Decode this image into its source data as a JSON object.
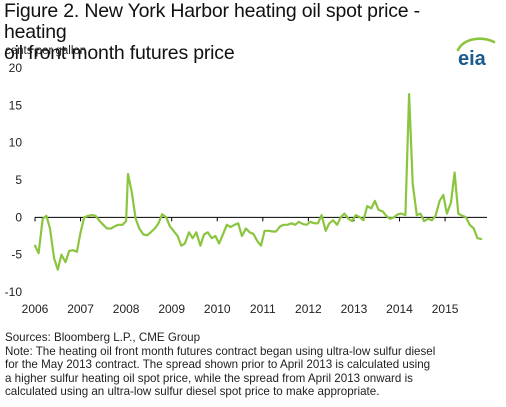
{
  "title_line1": "Figure 2. New York Harbor heating oil spot price - heating",
  "title_line2": "oil front month futures price",
  "units_label": "cents per gallon",
  "logo_text": "eia",
  "colors": {
    "line": "#8BC53F",
    "zero_line": "#000000",
    "text": "#222222",
    "logo": "#1a5a8c"
  },
  "chart_data": {
    "type": "line",
    "title": "Figure 2. New York Harbor heating oil spot price - heating oil front month futures price",
    "ylabel": "cents per gallon",
    "xlabel": "",
    "ylim": [
      -10,
      20
    ],
    "yticks": [
      -10,
      -5,
      0,
      5,
      10,
      15,
      20
    ],
    "xlim": [
      2006,
      2015.92
    ],
    "xticks": [
      2006,
      2007,
      2008,
      2009,
      2010,
      2011,
      2012,
      2013,
      2014,
      2015
    ],
    "xticklabels": [
      "2006",
      "2007",
      "2008",
      "2009",
      "2010",
      "2011",
      "2012",
      "2013",
      "2014",
      "2015"
    ],
    "grid": false,
    "series": [
      {
        "values": [
          [
            2006.0,
            -3.8
          ],
          [
            2006.08,
            -4.8
          ],
          [
            2006.17,
            -0.2
          ],
          [
            2006.25,
            0.2
          ],
          [
            2006.33,
            -1.5
          ],
          [
            2006.42,
            -5.5
          ],
          [
            2006.5,
            -7.0
          ],
          [
            2006.58,
            -5.0
          ],
          [
            2006.67,
            -6.0
          ],
          [
            2006.75,
            -4.5
          ],
          [
            2006.83,
            -4.4
          ],
          [
            2006.92,
            -4.6
          ],
          [
            2007.0,
            -2.0
          ],
          [
            2007.08,
            0.0
          ],
          [
            2007.17,
            0.2
          ],
          [
            2007.25,
            0.3
          ],
          [
            2007.33,
            0.2
          ],
          [
            2007.42,
            -0.5
          ],
          [
            2007.5,
            -1.0
          ],
          [
            2007.58,
            -1.5
          ],
          [
            2007.67,
            -1.5
          ],
          [
            2007.75,
            -1.2
          ],
          [
            2007.83,
            -1.0
          ],
          [
            2007.92,
            -1.0
          ],
          [
            2008.0,
            -0.5
          ],
          [
            2008.04,
            5.8
          ],
          [
            2008.12,
            3.5
          ],
          [
            2008.21,
            -0.2
          ],
          [
            2008.29,
            -1.5
          ],
          [
            2008.38,
            -2.3
          ],
          [
            2008.46,
            -2.4
          ],
          [
            2008.54,
            -2.0
          ],
          [
            2008.63,
            -1.5
          ],
          [
            2008.71,
            -0.8
          ],
          [
            2008.79,
            0.4
          ],
          [
            2008.88,
            0.0
          ],
          [
            2008.96,
            -1.2
          ],
          [
            2009.04,
            -1.8
          ],
          [
            2009.13,
            -2.5
          ],
          [
            2009.21,
            -3.8
          ],
          [
            2009.29,
            -3.5
          ],
          [
            2009.38,
            -2.0
          ],
          [
            2009.46,
            -2.8
          ],
          [
            2009.54,
            -2.0
          ],
          [
            2009.63,
            -3.8
          ],
          [
            2009.71,
            -2.3
          ],
          [
            2009.79,
            -2.0
          ],
          [
            2009.88,
            -2.8
          ],
          [
            2009.96,
            -2.5
          ],
          [
            2010.04,
            -3.5
          ],
          [
            2010.13,
            -2.2
          ],
          [
            2010.21,
            -1.0
          ],
          [
            2010.29,
            -1.3
          ],
          [
            2010.38,
            -1.0
          ],
          [
            2010.46,
            -0.8
          ],
          [
            2010.54,
            -2.5
          ],
          [
            2010.63,
            -1.5
          ],
          [
            2010.71,
            -2.0
          ],
          [
            2010.79,
            -2.2
          ],
          [
            2010.88,
            -3.2
          ],
          [
            2010.96,
            -3.8
          ],
          [
            2011.04,
            -1.8
          ],
          [
            2011.13,
            -1.8
          ],
          [
            2011.21,
            -1.9
          ],
          [
            2011.29,
            -1.9
          ],
          [
            2011.38,
            -1.2
          ],
          [
            2011.46,
            -1.0
          ],
          [
            2011.54,
            -1.0
          ],
          [
            2011.63,
            -0.8
          ],
          [
            2011.71,
            -1.0
          ],
          [
            2011.79,
            -0.6
          ],
          [
            2011.88,
            -0.9
          ],
          [
            2011.96,
            -1.0
          ],
          [
            2012.04,
            -0.6
          ],
          [
            2012.13,
            -0.8
          ],
          [
            2012.21,
            -0.8
          ],
          [
            2012.29,
            0.3
          ],
          [
            2012.38,
            -1.8
          ],
          [
            2012.46,
            -0.8
          ],
          [
            2012.54,
            -0.4
          ],
          [
            2012.63,
            -1.0
          ],
          [
            2012.71,
            0.0
          ],
          [
            2012.79,
            0.5
          ],
          [
            2012.88,
            -0.2
          ],
          [
            2012.96,
            -0.5
          ],
          [
            2013.04,
            0.3
          ],
          [
            2013.13,
            0.0
          ],
          [
            2013.21,
            -0.4
          ],
          [
            2013.29,
            1.5
          ],
          [
            2013.38,
            1.2
          ],
          [
            2013.46,
            2.2
          ],
          [
            2013.54,
            1.0
          ],
          [
            2013.63,
            0.8
          ],
          [
            2013.71,
            0.2
          ],
          [
            2013.79,
            -0.2
          ],
          [
            2013.88,
            0.0
          ],
          [
            2013.96,
            0.4
          ],
          [
            2014.04,
            0.5
          ],
          [
            2014.13,
            0.3
          ],
          [
            2014.21,
            16.5
          ],
          [
            2014.29,
            4.5
          ],
          [
            2014.38,
            0.3
          ],
          [
            2014.46,
            0.5
          ],
          [
            2014.54,
            -0.5
          ],
          [
            2014.63,
            -0.2
          ],
          [
            2014.71,
            -0.4
          ],
          [
            2014.79,
            0.2
          ],
          [
            2014.88,
            2.2
          ],
          [
            2014.96,
            3.0
          ],
          [
            2015.04,
            0.5
          ],
          [
            2015.13,
            2.0
          ],
          [
            2015.21,
            6.0
          ],
          [
            2015.29,
            0.5
          ],
          [
            2015.38,
            0.2
          ],
          [
            2015.46,
            0.0
          ],
          [
            2015.54,
            -1.0
          ],
          [
            2015.63,
            -1.5
          ],
          [
            2015.71,
            -2.8
          ],
          [
            2015.79,
            -2.9
          ]
        ]
      }
    ]
  },
  "notes": {
    "sources": "Sources: Bloomberg L.P., CME Group",
    "note_lines": [
      "Note: The heating oil front month futures contract began using ultra-low sulfur diesel",
      "for the May 2013 contract.  The  spread shown prior to April 2013 is calculated using",
      "a higher sulfur heating oil spot price, while the spread from April 2013 onward is",
      "calculated using an ultra-low  sulfur diesel spot price to make appropriate."
    ]
  }
}
